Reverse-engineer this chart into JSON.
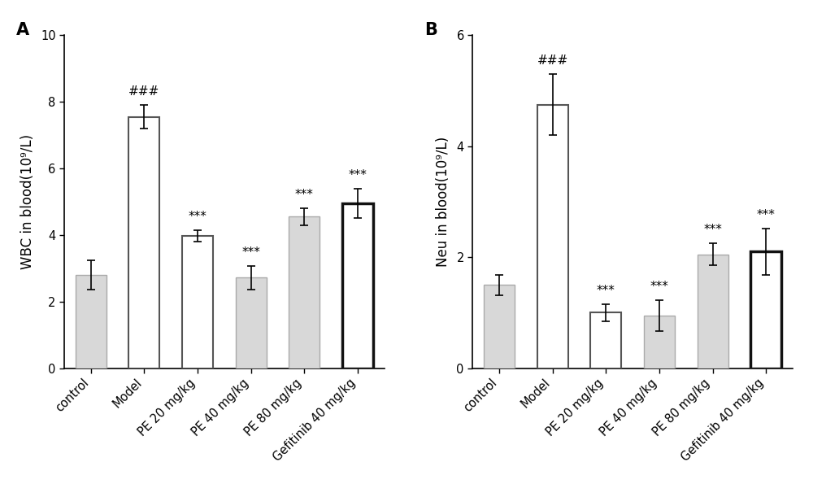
{
  "panel_A": {
    "label": "A",
    "categories": [
      "control",
      "Model",
      "PE 20 mg/kg",
      "PE 40 mg/kg",
      "PE 80 mg/kg",
      "Gefitinib 40 mg/kg"
    ],
    "values": [
      2.8,
      7.55,
      3.97,
      2.72,
      4.55,
      4.95
    ],
    "errors": [
      0.45,
      0.35,
      0.18,
      0.35,
      0.25,
      0.45
    ],
    "bar_facecolors": [
      "#d8d8d8",
      "#ffffff",
      "#ffffff",
      "#d8d8d8",
      "#d8d8d8",
      "#ffffff"
    ],
    "bar_edgecolors": [
      "#aaaaaa",
      "#555555",
      "#555555",
      "#aaaaaa",
      "#aaaaaa",
      "#111111"
    ],
    "bar_linewidths": [
      1.0,
      1.5,
      1.5,
      1.0,
      1.0,
      2.5
    ],
    "annotations": [
      "",
      "###",
      "***",
      "***",
      "***",
      "***"
    ],
    "ylabel": "WBC in blood(10⁹/L)",
    "ylim": [
      0,
      10
    ],
    "yticks": [
      0,
      2,
      4,
      6,
      8,
      10
    ]
  },
  "panel_B": {
    "label": "B",
    "categories": [
      "control",
      "Model",
      "PE 20 mg/kg",
      "PE 40 mg/kg",
      "PE 80 mg/kg",
      "Gefitinib 40 mg/kg"
    ],
    "values": [
      1.5,
      4.75,
      1.0,
      0.95,
      2.05,
      2.1
    ],
    "errors": [
      0.18,
      0.55,
      0.15,
      0.28,
      0.2,
      0.42
    ],
    "bar_facecolors": [
      "#d8d8d8",
      "#ffffff",
      "#ffffff",
      "#d8d8d8",
      "#d8d8d8",
      "#ffffff"
    ],
    "bar_edgecolors": [
      "#aaaaaa",
      "#555555",
      "#555555",
      "#aaaaaa",
      "#aaaaaa",
      "#111111"
    ],
    "bar_linewidths": [
      1.0,
      1.5,
      1.5,
      1.0,
      1.0,
      2.5
    ],
    "annotations": [
      "",
      "###",
      "***",
      "***",
      "***",
      "***"
    ],
    "ylabel": "Neu in blood(10⁹/L)",
    "ylim": [
      0,
      6
    ],
    "yticks": [
      0,
      2,
      4,
      6
    ]
  },
  "background_color": "#ffffff",
  "bar_width": 0.58,
  "fontsize_ylabel": 12,
  "fontsize_tick": 10.5,
  "fontsize_ann": 11,
  "fontsize_panel_label": 15
}
